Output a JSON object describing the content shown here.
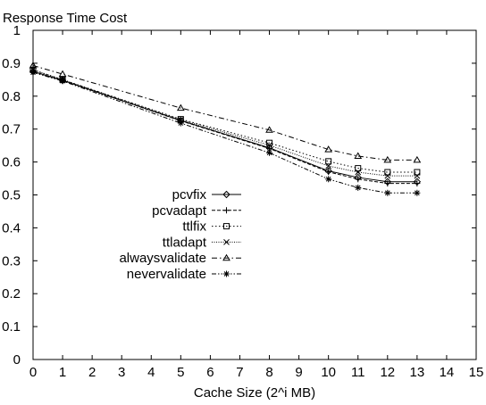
{
  "chart_data": {
    "type": "line",
    "title": "",
    "ylabel": "Response Time Cost",
    "xlabel": "Cache Size (2^i MB)",
    "xlim": [
      0,
      15
    ],
    "ylim": [
      0,
      1
    ],
    "x_ticks": [
      0,
      1,
      2,
      3,
      4,
      5,
      6,
      7,
      8,
      9,
      10,
      11,
      12,
      13,
      14,
      15
    ],
    "y_ticks": [
      0,
      0.1,
      0.2,
      0.3,
      0.4,
      0.5,
      0.6,
      0.7,
      0.8,
      0.9,
      1
    ],
    "grid": false,
    "legend_position": "center-left",
    "x": [
      0,
      1,
      5,
      8,
      10,
      11,
      12,
      13
    ],
    "series": [
      {
        "name": "pcvfix",
        "values": [
          0.875,
          0.848,
          0.726,
          0.643,
          0.573,
          0.553,
          0.54,
          0.54
        ],
        "marker": "diamond",
        "dash": "solid"
      },
      {
        "name": "pcvadapt",
        "values": [
          0.875,
          0.848,
          0.725,
          0.641,
          0.57,
          0.548,
          0.535,
          0.535
        ],
        "marker": "plus",
        "dash": "dashed"
      },
      {
        "name": "ttlfix",
        "values": [
          0.88,
          0.85,
          0.73,
          0.658,
          0.602,
          0.581,
          0.569,
          0.569
        ],
        "marker": "square",
        "dash": "dotted"
      },
      {
        "name": "ttladapt",
        "values": [
          0.88,
          0.85,
          0.728,
          0.651,
          0.588,
          0.569,
          0.558,
          0.558
        ],
        "marker": "cross",
        "dash": "dense-dotted"
      },
      {
        "name": "alwaysvalidate",
        "values": [
          0.893,
          0.867,
          0.764,
          0.697,
          0.638,
          0.618,
          0.606,
          0.606
        ],
        "marker": "triangle",
        "dash": "dash-dot"
      },
      {
        "name": "nevervalidate",
        "values": [
          0.872,
          0.846,
          0.718,
          0.628,
          0.548,
          0.522,
          0.506,
          0.506
        ],
        "marker": "star",
        "dash": "dash-dot-dot"
      }
    ]
  }
}
